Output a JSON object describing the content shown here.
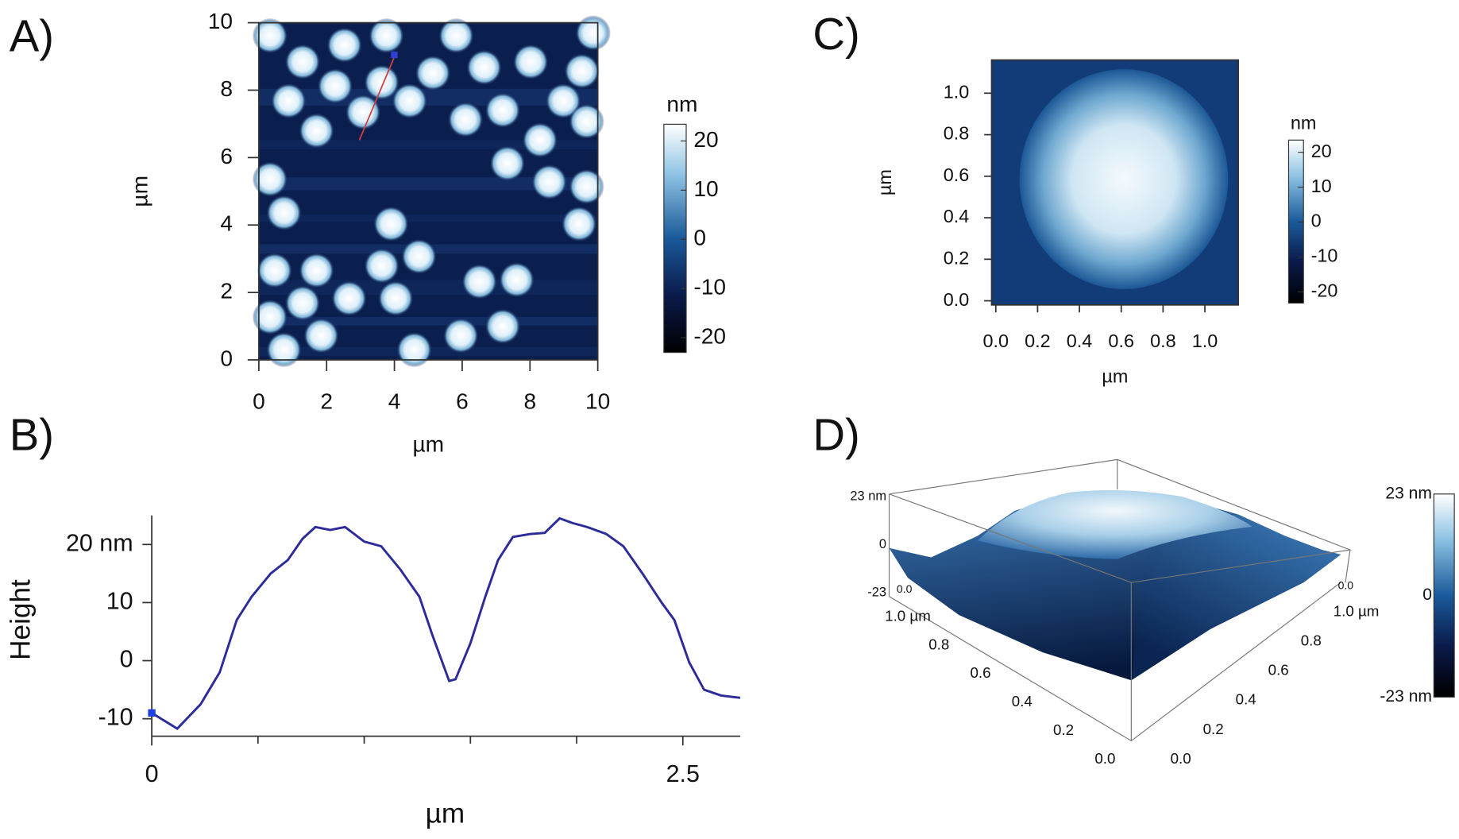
{
  "chart_data": [
    {
      "type": "image",
      "label": "A)",
      "xlabel": "µm",
      "ylabel": "µm",
      "xlim": [
        0,
        10
      ],
      "ylim": [
        0,
        10
      ],
      "xticks": [
        0,
        2,
        4,
        6,
        8,
        10
      ],
      "yticks": [
        0,
        2,
        4,
        6,
        8,
        10
      ],
      "colorbar": {
        "label": "nm",
        "clim": [
          -23,
          23.4
        ],
        "cticks": [
          -20,
          -10,
          0,
          10,
          20
        ]
      }
    },
    {
      "type": "line",
      "label": "B)",
      "xlabel": "µm",
      "ylabel": "Height",
      "color": "#2b2b9a",
      "xlim": [
        0,
        2.77
      ],
      "ylim": [
        -13,
        25
      ],
      "xticks": [
        0,
        2.5
      ],
      "xminor": [
        0.5,
        1,
        1.5,
        2
      ],
      "yticks": [
        -10,
        0,
        10,
        {
          "value": 20,
          "label": "20 nm"
        }
      ],
      "x": [
        0,
        0.12,
        0.23,
        0.32,
        0.4,
        0.47,
        0.56,
        0.64,
        0.71,
        0.77,
        0.84,
        0.91,
        1.0,
        1.08,
        1.17,
        1.26,
        1.32,
        1.4,
        1.43,
        1.5,
        1.57,
        1.63,
        1.7,
        1.78,
        1.85,
        1.92,
        1.98,
        2.05,
        2.14,
        2.22,
        2.31,
        2.4,
        2.46,
        2.53,
        2.6,
        2.68,
        2.77
      ],
      "values": [
        -9,
        -11.7,
        -7.5,
        -2,
        7,
        11,
        15,
        17.3,
        21,
        23,
        22.5,
        23,
        20.5,
        19.7,
        15.7,
        11,
        4.5,
        -3.5,
        -3.2,
        3,
        11,
        17.3,
        21.3,
        21.8,
        22,
        24.5,
        23.7,
        23,
        21.8,
        19.7,
        15,
        10,
        7,
        -0.3,
        -5,
        -6,
        -6.4
      ]
    },
    {
      "type": "image",
      "label": "C)",
      "xlabel": "µm",
      "ylabel": "µm",
      "xlim": [
        -0.02,
        1.16
      ],
      "ylim": [
        -0.02,
        1.16
      ],
      "xticks": [
        {
          "value": 0,
          "label": "0.0"
        },
        0.2,
        0.4,
        0.6,
        0.8,
        {
          "value": 1,
          "label": "1.0"
        }
      ],
      "yticks": [
        {
          "value": 0,
          "label": "0.0"
        },
        0.2,
        0.4,
        0.6,
        0.8,
        {
          "value": 1,
          "label": "1.0"
        }
      ],
      "colorbar": {
        "label": "nm",
        "clim": [
          -23.2,
          23.5
        ],
        "cticks": [
          -20,
          -10,
          0,
          10,
          20
        ]
      }
    },
    {
      "type": "surface3d",
      "label": "D)",
      "zlim": [
        -23,
        23
      ],
      "zticks": [
        {
          "value": 23,
          "label": "23 nm"
        },
        0,
        {
          "value": -23,
          "label": "-23"
        }
      ],
      "xticks": [
        {
          "value": 0,
          "label": "0.0"
        },
        0.2,
        0.4,
        0.6,
        0.8,
        {
          "value": 1,
          "label": "1.0 µm"
        }
      ],
      "yticks": [
        {
          "value": 0,
          "label": "0.0"
        },
        0.2,
        0.4,
        0.6,
        0.8,
        {
          "value": 1,
          "label": "1.0 µm"
        }
      ],
      "corner_labels": [
        "0.0",
        "0.0"
      ],
      "colorbar": {
        "clim": [
          -23,
          23
        ],
        "cticks": [
          {
            "value": 23,
            "label": "23 nm"
          },
          0,
          {
            "value": -23,
            "label": "-23 nm"
          }
        ]
      }
    }
  ]
}
